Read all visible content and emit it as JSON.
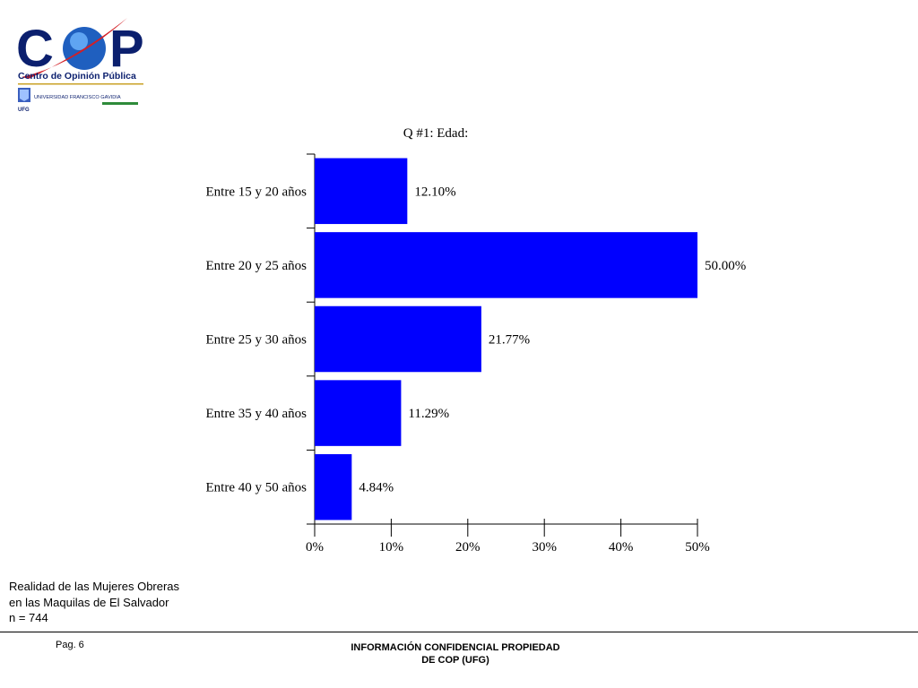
{
  "branding": {
    "logo_wordmark": "COP",
    "logo_tagline": "Centro de Opinión Pública",
    "university_name": "UNIVERSIDAD FRANCISCO GAVIDIA",
    "university_abbr": "UFG",
    "colors": {
      "navy": "#0b1f6e",
      "red": "#d21f26",
      "gold": "#c9a227",
      "green": "#2e8b3a"
    }
  },
  "chart_data": {
    "type": "bar",
    "orientation": "horizontal",
    "title": "Q #1: Edad:",
    "categories": [
      "Entre 15 y 20 años",
      "Entre 20 y 25 años",
      "Entre 25 y 30 años",
      "Entre 35 y 40 años",
      "Entre 40 y 50 años"
    ],
    "values": [
      12.1,
      50.0,
      21.77,
      11.29,
      4.84
    ],
    "value_labels": [
      "12.10%",
      "50.00%",
      "21.77%",
      "11.29%",
      "4.84%"
    ],
    "xticks": [
      "0%",
      "10%",
      "20%",
      "30%",
      "40%",
      "50%"
    ],
    "xlim": [
      0,
      50
    ],
    "bar_color": "#0000ff",
    "grid": false,
    "xlabel": "",
    "ylabel": ""
  },
  "footnote": {
    "line1": "Realidad de las Mujeres Obreras",
    "line2": "en las Maquilas de El Salvador",
    "line3": "n = 744"
  },
  "footer": {
    "page": "Pag. 6",
    "confidential_line1": "INFORMACIÓN CONFIDENCIAL PROPIEDAD",
    "confidential_line2": "DE COP (UFG)"
  }
}
